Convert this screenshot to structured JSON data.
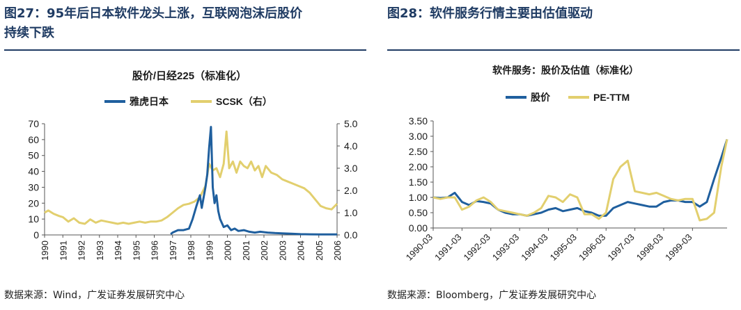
{
  "left": {
    "title_line1": "图27：95年后日本软件龙头上涨，互联网泡沫后股价",
    "title_line2": "持续下跌",
    "source": "数据来源：Wind，广发证券发展研究中心"
  },
  "right": {
    "title": "图28：软件服务行情主要由估值驱动",
    "source": "数据来源：Bloomberg，广发证券发展研究中心"
  },
  "chart_data": [
    {
      "type": "line",
      "title": "股价/日经225（标准化）",
      "legend": [
        "雅虎日本",
        "SCSK（右）"
      ],
      "legend_position": "top",
      "x_ticks": [
        "1990",
        "1991",
        "1992",
        "1993",
        "1994",
        "1995",
        "1996",
        "1997",
        "1998",
        "1999",
        "2000",
        "2001",
        "2002",
        "2003",
        "2004",
        "2005",
        "2006"
      ],
      "xlim": [
        1990,
        2006
      ],
      "y_left": {
        "ticks": [
          "0",
          "10",
          "20",
          "30",
          "40",
          "50",
          "60",
          "70"
        ],
        "ylim": [
          0,
          70
        ]
      },
      "y_right": {
        "ticks": [
          "0.0",
          "1.0",
          "2.0",
          "3.0",
          "4.0",
          "5.0"
        ],
        "ylim": [
          0,
          5
        ]
      },
      "colors": {
        "series1": "#1f5f9e",
        "series2": "#e2cf6e"
      },
      "series": [
        {
          "name": "雅虎日本",
          "axis": "left",
          "x": [
            1996.9,
            1997.0,
            1997.3,
            1997.6,
            1997.9,
            1998.1,
            1998.3,
            1998.5,
            1998.6,
            1998.8,
            1998.9,
            1999.0,
            1999.1,
            1999.2,
            1999.3,
            1999.4,
            1999.5,
            1999.6,
            1999.8,
            2000.0,
            2000.2,
            2000.4,
            2000.6,
            2000.9,
            2001.2,
            2001.5,
            2001.8,
            2002.2,
            2002.6,
            2003.0,
            2003.5,
            2004.0,
            2004.5,
            2005.0,
            2005.5,
            2006.0
          ],
          "values": [
            0.5,
            1.5,
            3,
            3,
            4,
            10,
            18,
            25,
            17,
            30,
            38,
            55,
            68,
            30,
            20,
            25,
            15,
            10,
            5,
            6,
            3,
            4,
            2.5,
            3,
            2,
            1.5,
            2,
            1.5,
            1.2,
            1,
            0.8,
            0.5,
            0.4,
            0.3,
            0.3,
            0.3
          ]
        },
        {
          "name": "SCSK（右）",
          "axis": "right",
          "x": [
            1990.0,
            1990.2,
            1990.5,
            1990.8,
            1991.0,
            1991.3,
            1991.6,
            1991.9,
            1992.2,
            1992.5,
            1992.8,
            1993.1,
            1993.4,
            1993.7,
            1994.0,
            1994.3,
            1994.6,
            1994.9,
            1995.2,
            1995.5,
            1995.8,
            1996.1,
            1996.4,
            1996.7,
            1997.0,
            1997.3,
            1997.6,
            1997.9,
            1998.2,
            1998.5,
            1998.8,
            1999.0,
            1999.2,
            1999.4,
            1999.6,
            1999.8,
            1999.95,
            2000.1,
            2000.3,
            2000.5,
            2000.7,
            2000.9,
            2001.1,
            2001.3,
            2001.5,
            2001.7,
            2001.9,
            2002.1,
            2002.4,
            2002.7,
            2003.0,
            2003.3,
            2003.6,
            2003.9,
            2004.2,
            2004.5,
            2004.8,
            2005.1,
            2005.4,
            2005.7,
            2006.0
          ],
          "values": [
            1.0,
            1.1,
            0.95,
            0.85,
            0.8,
            0.6,
            0.75,
            0.55,
            0.5,
            0.7,
            0.55,
            0.65,
            0.6,
            0.55,
            0.5,
            0.55,
            0.5,
            0.55,
            0.6,
            0.55,
            0.6,
            0.6,
            0.65,
            0.8,
            1.0,
            1.2,
            1.35,
            1.4,
            1.5,
            1.7,
            2.2,
            3.2,
            2.9,
            3.0,
            2.6,
            3.2,
            4.65,
            3.0,
            3.3,
            2.8,
            3.3,
            3.1,
            3.0,
            3.3,
            2.9,
            3.1,
            2.6,
            3.1,
            2.8,
            2.7,
            2.5,
            2.4,
            2.3,
            2.2,
            2.1,
            1.9,
            1.6,
            1.3,
            1.2,
            1.15,
            1.4
          ]
        }
      ]
    },
    {
      "type": "line",
      "title": "软件服务：股价及估值（标准化）",
      "legend": [
        "股价",
        "PE-TTM"
      ],
      "legend_position": "top",
      "x_ticks": [
        "1990-03",
        "1991-03",
        "1992-03",
        "1993-03",
        "1994-03",
        "1995-03",
        "1996-03",
        "1997-03",
        "1998-03",
        "1999-03"
      ],
      "xlim": [
        0,
        10.2
      ],
      "y_left": {
        "ticks": [
          "0.00",
          "0.50",
          "1.00",
          "1.50",
          "2.00",
          "2.50",
          "3.00",
          "3.50"
        ],
        "ylim": [
          0,
          3.5
        ]
      },
      "colors": {
        "series1": "#1f5f9e",
        "series2": "#e2cf6e"
      },
      "series": [
        {
          "name": "股价",
          "x": [
            0,
            0.25,
            0.5,
            0.75,
            1.0,
            1.25,
            1.5,
            1.75,
            2.0,
            2.25,
            2.5,
            2.75,
            3.0,
            3.25,
            3.5,
            3.75,
            4.0,
            4.25,
            4.5,
            4.75,
            5.0,
            5.25,
            5.5,
            5.75,
            6.0,
            6.25,
            6.5,
            6.75,
            7.0,
            7.25,
            7.5,
            7.75,
            8.0,
            8.25,
            8.5,
            8.75,
            9.0,
            9.25,
            9.5,
            9.75,
            10.0,
            10.2
          ],
          "values": [
            1.0,
            0.98,
            1.0,
            1.15,
            0.85,
            0.75,
            0.88,
            0.85,
            0.8,
            0.6,
            0.5,
            0.45,
            0.45,
            0.4,
            0.45,
            0.5,
            0.6,
            0.65,
            0.55,
            0.6,
            0.65,
            0.55,
            0.5,
            0.4,
            0.4,
            0.65,
            0.75,
            0.85,
            0.8,
            0.75,
            0.7,
            0.7,
            0.85,
            0.9,
            0.9,
            0.85,
            0.85,
            0.7,
            0.85,
            1.6,
            2.3,
            2.9
          ]
        },
        {
          "name": "PE-TTM",
          "x": [
            0,
            0.25,
            0.5,
            0.75,
            1.0,
            1.25,
            1.5,
            1.75,
            2.0,
            2.25,
            2.5,
            2.75,
            3.0,
            3.25,
            3.5,
            3.75,
            4.0,
            4.25,
            4.5,
            4.75,
            5.0,
            5.25,
            5.5,
            5.75,
            6.0,
            6.25,
            6.5,
            6.75,
            7.0,
            7.25,
            7.5,
            7.75,
            8.0,
            8.25,
            8.5,
            8.75,
            9.0,
            9.25,
            9.5,
            9.75,
            10.0,
            10.2
          ],
          "values": [
            1.0,
            0.95,
            1.0,
            1.0,
            0.6,
            0.7,
            0.9,
            1.0,
            0.85,
            0.6,
            0.55,
            0.5,
            0.45,
            0.4,
            0.5,
            0.65,
            1.05,
            1.0,
            0.85,
            1.1,
            1.0,
            0.45,
            0.45,
            0.3,
            0.5,
            1.6,
            2.0,
            2.2,
            1.2,
            1.15,
            1.1,
            1.15,
            1.05,
            0.95,
            0.9,
            0.95,
            0.95,
            0.25,
            0.3,
            0.5,
            2.0,
            2.9
          ]
        }
      ]
    }
  ]
}
